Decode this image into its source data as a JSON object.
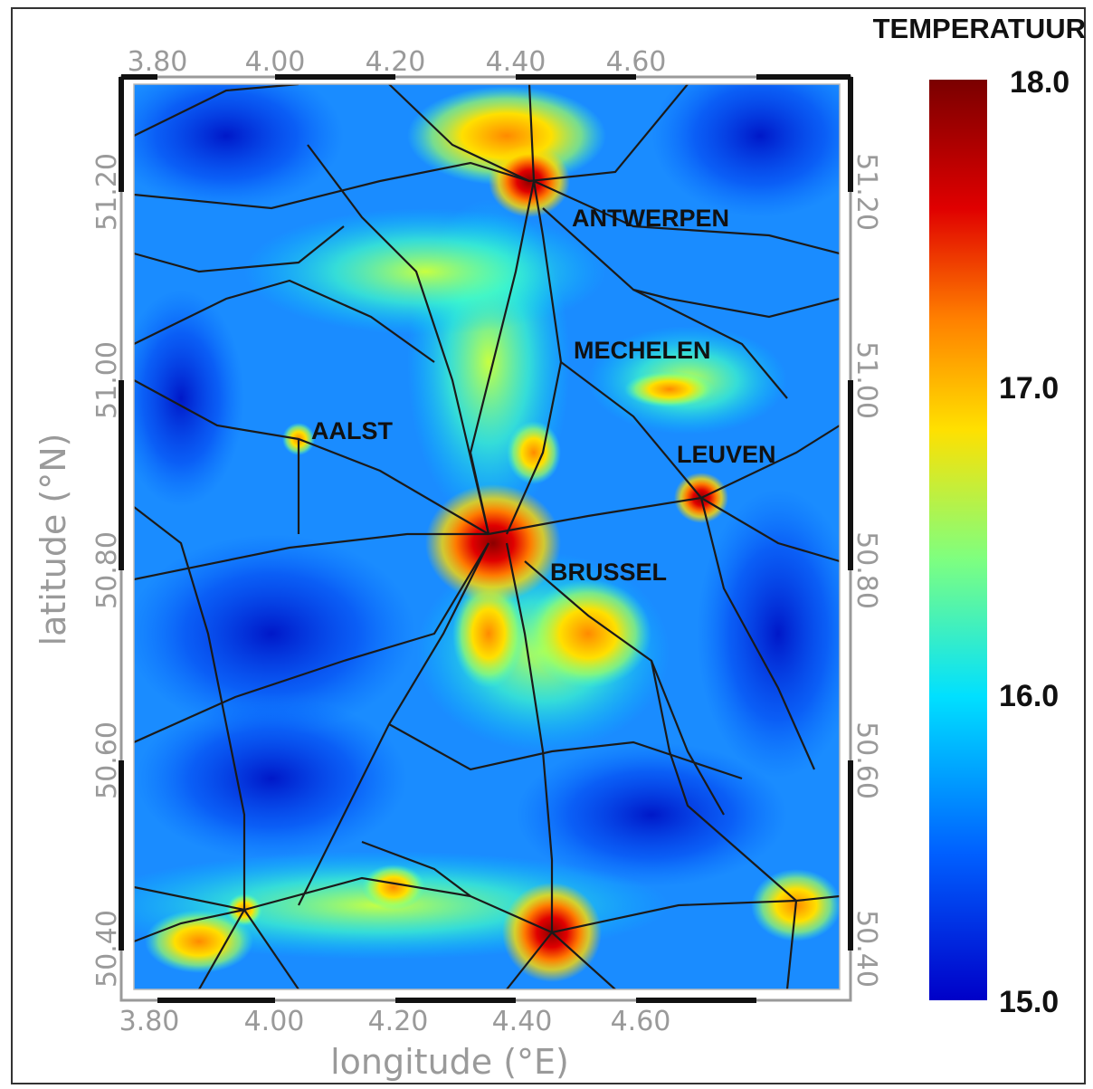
{
  "map": {
    "colorbar_title": "TEMPERATUUR",
    "colorbar_ticks": [
      "18.0",
      "17.0",
      "16.0",
      "15.0"
    ],
    "colorbar_colors": [
      "#7a0000",
      "#e00000",
      "#ff8000",
      "#ffe000",
      "#7fff7f",
      "#00e0ff",
      "#0060ff",
      "#0000c8"
    ],
    "x_ticks": [
      "3.80",
      "4.00",
      "4.20",
      "4.40",
      "4.60"
    ],
    "y_ticks": [
      "51.20",
      "51.00",
      "50.80",
      "50.60",
      "50.40"
    ],
    "x_axis_title": "longitude (°E)",
    "y_axis_title": "latitude (°N)",
    "cities": [
      "ANTWERPEN",
      "MECHELEN",
      "AALST",
      "LEUVEN",
      "BRUSSEL"
    ]
  }
}
